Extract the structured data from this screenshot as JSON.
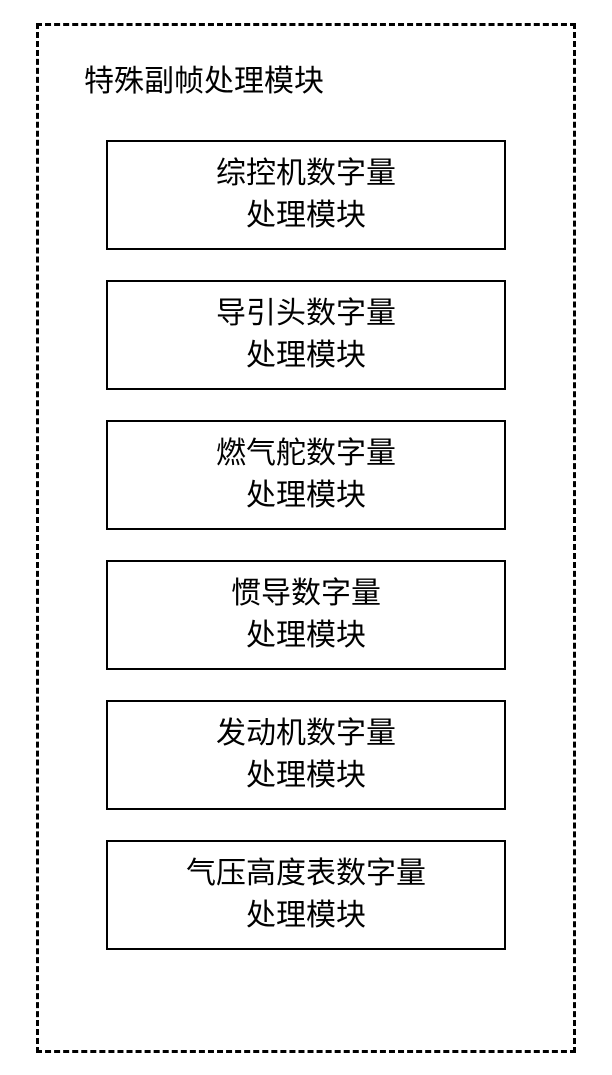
{
  "diagram": {
    "type": "flowchart",
    "title": "特殊副帧处理模块",
    "container_border_style": "dashed",
    "container_border_color": "#000000",
    "container_border_width": 3,
    "background_color": "#ffffff",
    "title_fontsize": 30,
    "title_color": "#000000",
    "module_fontsize": 30,
    "module_border_color": "#000000",
    "module_border_width": 2,
    "module_width": 400,
    "module_height": 110,
    "module_gap": 30,
    "modules": [
      {
        "line1": "综控机数字量",
        "line2": "处理模块"
      },
      {
        "line1": "导引头数字量",
        "line2": "处理模块"
      },
      {
        "line1": "燃气舵数字量",
        "line2": "处理模块"
      },
      {
        "line1": "惯导数字量",
        "line2": "处理模块"
      },
      {
        "line1": "发动机数字量",
        "line2": "处理模块"
      },
      {
        "line1": "气压高度表数字量",
        "line2": "处理模块"
      }
    ]
  }
}
